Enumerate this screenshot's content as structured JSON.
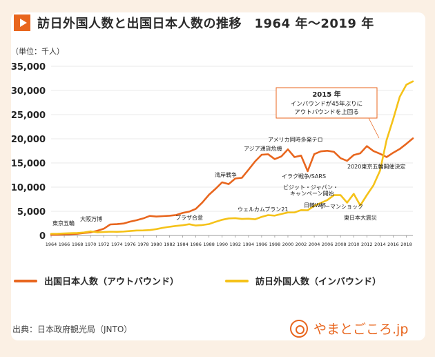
{
  "header": {
    "title": "訪日外国人数と出国日本人数の推移　1964 年〜2019 年",
    "unit": "（単位：千人）"
  },
  "legend": {
    "outbound": "出国日本人数（アウトバウンド）",
    "inbound": "訪日外国人数（インバウンド）"
  },
  "footer": {
    "source": "出典：日本政府観光局（JNTO）",
    "brand": "やまとごころ.jp"
  },
  "colors": {
    "outbound": "#e8661e",
    "inbound": "#f5c219",
    "grid": "#e0e0e0",
    "text": "#2a2a2a"
  },
  "chart_data": {
    "type": "line",
    "xlim": [
      1964,
      2019
    ],
    "ylim": [
      0,
      35000
    ],
    "grid": "horizontal",
    "legend_position": "bottom",
    "y_ticks": [
      "0",
      "5,000",
      "10,000",
      "15,000",
      "20,000",
      "25,000",
      "30,000",
      "35,000"
    ],
    "x_ticks": [
      "1964",
      "1966",
      "1968",
      "1970",
      "1972",
      "1974",
      "1976",
      "1978",
      "1980",
      "1982",
      "1984",
      "1986",
      "1988",
      "1990",
      "1992",
      "1994",
      "1996",
      "1998",
      "2000",
      "2002",
      "2004",
      "2006",
      "2008",
      "2010",
      "2012",
      "2014",
      "2016",
      "2018"
    ],
    "series": [
      {
        "name": "出国日本人数（アウトバウンド）",
        "key": "outbound",
        "x": [
          1964,
          1965,
          1966,
          1967,
          1968,
          1969,
          1970,
          1971,
          1972,
          1973,
          1974,
          1975,
          1976,
          1977,
          1978,
          1979,
          1980,
          1981,
          1982,
          1983,
          1984,
          1985,
          1986,
          1987,
          1988,
          1989,
          1990,
          1991,
          1992,
          1993,
          1994,
          1995,
          1996,
          1997,
          1998,
          1999,
          2000,
          2001,
          2002,
          2003,
          2004,
          2005,
          2006,
          2007,
          2008,
          2009,
          2010,
          2011,
          2012,
          2013,
          2014,
          2015,
          2016,
          2017,
          2018,
          2019
        ],
        "values": [
          128,
          159,
          212,
          268,
          344,
          493,
          663,
          961,
          1392,
          2289,
          2336,
          2466,
          2853,
          3151,
          3525,
          4038,
          3909,
          4006,
          4086,
          4232,
          4659,
          4948,
          5516,
          6829,
          8427,
          9663,
          10997,
          10634,
          11791,
          11934,
          13579,
          15298,
          16695,
          16803,
          15806,
          16358,
          17819,
          16216,
          16523,
          13296,
          16831,
          17404,
          17535,
          17295,
          15987,
          15446,
          16637,
          16994,
          18491,
          17473,
          16903,
          16214,
          17116,
          17889,
          18954,
          20081
        ]
      },
      {
        "name": "訪日外国人数（インバウンド）",
        "key": "inbound",
        "x": [
          1964,
          1965,
          1966,
          1967,
          1968,
          1969,
          1970,
          1971,
          1972,
          1973,
          1974,
          1975,
          1976,
          1977,
          1978,
          1979,
          1980,
          1981,
          1982,
          1983,
          1984,
          1985,
          1986,
          1987,
          1988,
          1989,
          1990,
          1991,
          1992,
          1993,
          1994,
          1995,
          1996,
          1997,
          1998,
          1999,
          2000,
          2001,
          2002,
          2003,
          2004,
          2005,
          2006,
          2007,
          2008,
          2009,
          2010,
          2011,
          2012,
          2013,
          2014,
          2015,
          2016,
          2017,
          2018,
          2019
        ],
        "values": [
          353,
          367,
          433,
          477,
          519,
          609,
          854,
          660,
          724,
          785,
          764,
          812,
          915,
          1028,
          1039,
          1113,
          1317,
          1583,
          1793,
          1968,
          2110,
          2327,
          2062,
          2155,
          2355,
          2835,
          3236,
          3533,
          3582,
          3410,
          3468,
          3345,
          3837,
          4218,
          4106,
          4438,
          4757,
          4772,
          5239,
          5212,
          6138,
          6728,
          7334,
          8347,
          8351,
          6790,
          8611,
          6219,
          8358,
          10364,
          13413,
          19737,
          24039,
          28691,
          31192,
          31882
        ]
      }
    ],
    "annotations": [
      {
        "year": 1964,
        "text": "東京五輪",
        "series": "outbound"
      },
      {
        "year": 1970,
        "text": "大阪万博",
        "series": "outbound"
      },
      {
        "year": 1985,
        "text": "プラザ合意",
        "series": "outbound"
      },
      {
        "year": 1991,
        "text": "湾岸戦争",
        "series": "outbound"
      },
      {
        "year": 1997,
        "text": "アジア通貨危機",
        "series": "outbound"
      },
      {
        "year": 2001,
        "text": "アメリカ同時多発テロ",
        "series": "outbound"
      },
      {
        "year": 2003,
        "text": "イラク戦争/SARS",
        "series": "outbound"
      },
      {
        "year": 1997,
        "text": "ウェルカムプラン21",
        "series": "inbound"
      },
      {
        "year": 2003,
        "text": "ビジット・ジャパン・",
        "series": "inbound"
      },
      {
        "year": 2003,
        "text": "キャンペーン開始",
        "series": "inbound"
      },
      {
        "year": 2003,
        "text": "日韓W杯",
        "series": "inbound"
      },
      {
        "year": 2008,
        "text": "リーマンショック",
        "series": "inbound"
      },
      {
        "year": 2011,
        "text": "東日本大震災",
        "series": "inbound"
      },
      {
        "year": 2013,
        "text": "2020東京五輪開催決定",
        "series": "outbound"
      }
    ],
    "callout": {
      "year_label": "2015 年",
      "line1": "インバウンドが45年ぶりに",
      "line2": "アウトバウンドを上回る"
    }
  }
}
